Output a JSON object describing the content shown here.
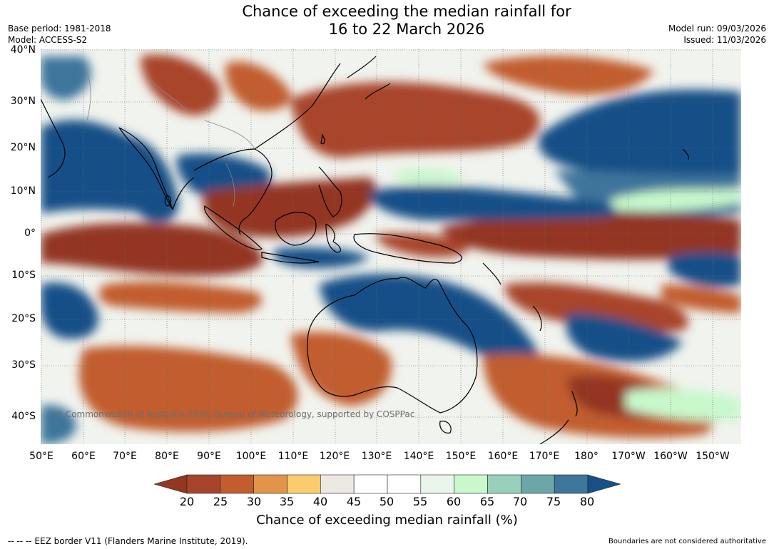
{
  "header": {
    "title_line1": "Chance of exceeding the median rainfall for",
    "title_line2": "16 to 22 March 2026",
    "base_period": "Base period: 1981-2018",
    "model": "Model: ACCESS-S2",
    "model_run": "Model run: 09/03/2026",
    "issued": "Issued: 11/03/2026"
  },
  "map": {
    "lat_labels": [
      "40°N",
      "30°N",
      "20°N",
      "10°N",
      "0°",
      "10°S",
      "20°S",
      "30°S",
      "40°S"
    ],
    "lon_labels": [
      "50°E",
      "60°E",
      "70°E",
      "80°E",
      "90°E",
      "100°E",
      "110°E",
      "120°E",
      "130°E",
      "140°E",
      "150°E",
      "160°E",
      "170°E",
      "180°",
      "170°W",
      "160°W",
      "150°W"
    ],
    "copyright": "© Commonwealth of Australia 2026, Bureau of Meteorology, supported by COSPPac"
  },
  "colorbar": {
    "ticks": [
      "20",
      "25",
      "30",
      "35",
      "40",
      "45",
      "50",
      "55",
      "60",
      "65",
      "70",
      "75",
      "80"
    ],
    "colors": [
      "#933622",
      "#a8442b",
      "#c15d2f",
      "#e2944a",
      "#fccb6e",
      "#ece9e3",
      "#ffffff",
      "#ffffff",
      "#eaf6ea",
      "#c8f8cc",
      "#99d0bb",
      "#6ba7a7",
      "#3e759b",
      "#175087"
    ],
    "label": "Chance of exceeding median rainfall (%)"
  },
  "footer": {
    "left": "-- -- -- EEZ border V11 (Flanders Marine Institute, 2019).",
    "right": "Boundaries are not considered authoritative"
  }
}
